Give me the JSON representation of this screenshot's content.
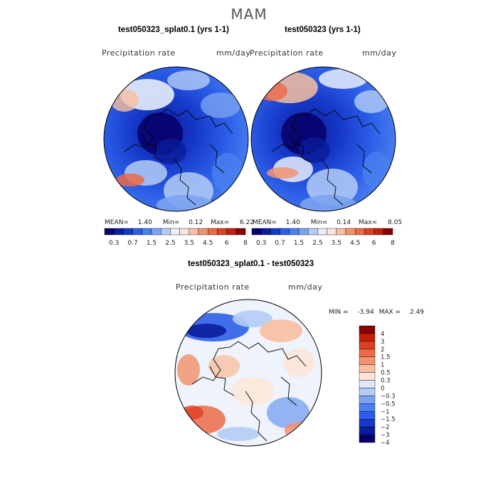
{
  "season": "MAM",
  "panels": [
    {
      "title": "test050323_splat0.1 (yrs 1-1)",
      "variable": "Precipitation rate",
      "units": "mm/day",
      "stats": {
        "mean_label": "MEAN=",
        "mean": "1.40",
        "min_label": "Min=",
        "min": "0.12",
        "max_label": "Max=",
        "max": "6.22"
      }
    },
    {
      "title": "test050323 (yrs 1-1)",
      "variable": "Precipitation rate",
      "units": "mm/day",
      "stats": {
        "mean_label": "MEAN=",
        "mean": "1.40",
        "min_label": "Min=",
        "min": "0.14",
        "max_label": "Max=",
        "max": "8.05"
      }
    }
  ],
  "abs_colorbar": {
    "colors": [
      "#08006a",
      "#0a1d9a",
      "#1638c8",
      "#2c5fe8",
      "#4a7fef",
      "#7ba3f1",
      "#b4cdf6",
      "#e7eefb",
      "#fde6d8",
      "#f7bfa0",
      "#f29370",
      "#ec6a48",
      "#de3f22",
      "#c31f0a",
      "#8b0000"
    ],
    "labels": [
      "0.3",
      "0.7",
      "1.5",
      "2.5",
      "3.5",
      "4.5",
      "6",
      "8"
    ]
  },
  "diff_panel": {
    "title": "test050323_splat0.1 - test050323",
    "variable": "Precipitation rate",
    "units": "mm/day",
    "stats": {
      "min_label": "MIN =",
      "min": "-3.94",
      "max_label": "MAX =",
      "max": "2.49"
    }
  },
  "diff_colorbar": {
    "colors": [
      "#8b0000",
      "#c31f0a",
      "#de3f22",
      "#ec6a48",
      "#f29370",
      "#f7bfa0",
      "#fde6d8",
      "#dde8fa",
      "#b4cdf6",
      "#7ba3f1",
      "#4a7fef",
      "#2c5fe8",
      "#1638c8",
      "#0a1d9a",
      "#08006a"
    ],
    "labels": [
      "4",
      "3",
      "2",
      "1.5",
      "1",
      "0.5",
      "0.3",
      "0",
      "−0.3",
      "−0.5",
      "−1",
      "−1.5",
      "−2",
      "−3",
      "−4"
    ]
  }
}
